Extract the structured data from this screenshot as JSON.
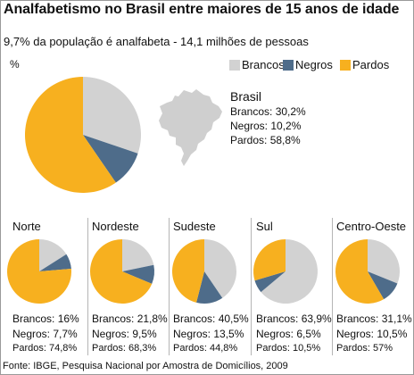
{
  "title": "Analfabetismo no Brasil entre maiores de 15 anos de idade",
  "subtitle": "9,7% da população é analfabeta - 14,1 milhões de pessoas",
  "unit": "%",
  "source": "Fonte: IBGE, Pesquisa Nacional por Amostra de Domicílios, 2009",
  "colors": {
    "brancos": "#d2d2d2",
    "negros": "#4e6c8a",
    "pardos": "#f7b01f",
    "map": "#cfcfcf"
  },
  "legend": [
    "Brancos",
    "Negros",
    "Pardos"
  ],
  "brasil": {
    "name": "Brasil",
    "lines": [
      "Brancos: 30,2%",
      "Negros: 10,2%",
      "Pardos: 58,8%"
    ]
  },
  "regions": [
    {
      "name": "Norte",
      "lines": [
        "Brancos: 16%",
        "Negros: 7,7%",
        "Pardos: 74,8%"
      ]
    },
    {
      "name": "Nordeste",
      "lines": [
        "Brancos: 21,8%",
        "Negros: 9,5%",
        "Pardos: 68,3%"
      ]
    },
    {
      "name": "Sudeste",
      "lines": [
        "Brancos: 40,5%",
        "Negros: 13,5%",
        "Pardos: 44,8%"
      ]
    },
    {
      "name": "Sul",
      "lines": [
        "Brancos: 63,9%",
        "Negros: 6,5%",
        "Pardos: 10,5%"
      ]
    },
    {
      "name": "Centro-Oeste",
      "lines": [
        "Brancos: 31,1%",
        "Negros: 10,5%",
        "Pardos: 57%"
      ]
    }
  ],
  "chart_data": [
    {
      "type": "pie",
      "title": "Brasil",
      "categories": [
        "Brancos",
        "Negros",
        "Pardos"
      ],
      "values": [
        30.2,
        10.2,
        58.8
      ]
    },
    {
      "type": "pie",
      "title": "Norte",
      "categories": [
        "Brancos",
        "Negros",
        "Pardos"
      ],
      "values": [
        16,
        7.7,
        74.8
      ]
    },
    {
      "type": "pie",
      "title": "Nordeste",
      "categories": [
        "Brancos",
        "Negros",
        "Pardos"
      ],
      "values": [
        21.8,
        9.5,
        68.3
      ]
    },
    {
      "type": "pie",
      "title": "Sudeste",
      "categories": [
        "Brancos",
        "Negros",
        "Pardos"
      ],
      "values": [
        40.5,
        13.5,
        44.8
      ]
    },
    {
      "type": "pie",
      "title": "Sul",
      "categories": [
        "Brancos",
        "Negros",
        "Pardos"
      ],
      "values": [
        63.9,
        6.5,
        10.5
      ]
    },
    {
      "type": "pie",
      "title": "Centro-Oeste",
      "categories": [
        "Brancos",
        "Negros",
        "Pardos"
      ],
      "values": [
        31.1,
        10.5,
        57
      ]
    }
  ]
}
